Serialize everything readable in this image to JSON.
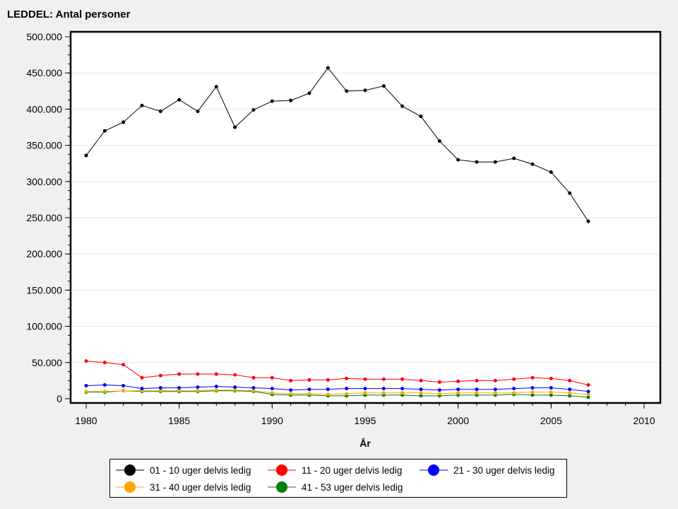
{
  "chart_data": {
    "type": "line",
    "title": "LEDDEL: Antal personer",
    "xlabel": "År",
    "ylabel": "",
    "xlim": [
      1980,
      2010
    ],
    "ylim": [
      0,
      500000
    ],
    "x_ticks": [
      "1980",
      "1985",
      "1990",
      "1995",
      "2000",
      "2005",
      "2010"
    ],
    "y_ticks": [
      "0",
      "50.000",
      "100.000",
      "150.000",
      "200.000",
      "250.000",
      "300.000",
      "350.000",
      "400.000",
      "450.000",
      "500.000"
    ],
    "grid": true,
    "legend_position": "bottom",
    "x": [
      1980,
      1981,
      1982,
      1983,
      1984,
      1985,
      1986,
      1987,
      1988,
      1989,
      1990,
      1991,
      1992,
      1993,
      1994,
      1995,
      1996,
      1997,
      1998,
      1999,
      2000,
      2001,
      2002,
      2003,
      2004,
      2005,
      2006,
      2007
    ],
    "series": [
      {
        "name": "01 - 10 uger delvis ledig",
        "color": "#000000",
        "values": [
          336000,
          370000,
          382000,
          405000,
          397000,
          413000,
          397000,
          431000,
          375000,
          399000,
          411000,
          412000,
          422000,
          457000,
          425000,
          426000,
          432000,
          404000,
          390000,
          356000,
          330000,
          327000,
          327000,
          332000,
          324000,
          313000,
          284000,
          245000
        ]
      },
      {
        "name": "11 - 20 uger delvis ledig",
        "color": "#ff0000",
        "values": [
          52000,
          50000,
          47000,
          29000,
          32000,
          34000,
          34000,
          34000,
          33000,
          29000,
          29000,
          25000,
          26000,
          26000,
          28000,
          27000,
          27000,
          27000,
          25000,
          23000,
          24000,
          25000,
          25000,
          27000,
          29000,
          28000,
          25000,
          19000
        ]
      },
      {
        "name": "21 - 30 uger delvis ledig",
        "color": "#0000ff",
        "values": [
          18000,
          19000,
          18000,
          14000,
          15000,
          15000,
          16000,
          17000,
          16000,
          15000,
          14000,
          12000,
          13000,
          13000,
          14000,
          14000,
          14000,
          14000,
          13000,
          12000,
          13000,
          13000,
          13000,
          14000,
          15000,
          15000,
          13000,
          10000
        ]
      },
      {
        "name": "31 - 40 uger delvis ledig",
        "color": "#ffa500",
        "values": [
          10000,
          10000,
          11000,
          11000,
          11000,
          11000,
          11000,
          12000,
          12000,
          11000,
          8000,
          7000,
          7000,
          6000,
          7000,
          8000,
          8000,
          8000,
          8000,
          7000,
          8000,
          8000,
          8000,
          8000,
          9000,
          9000,
          8000,
          6000
        ]
      },
      {
        "name": "41 - 53 uger delvis ledig",
        "color": "#008000",
        "values": [
          9000,
          9000,
          11000,
          10000,
          10000,
          10000,
          10000,
          11000,
          11000,
          10000,
          6000,
          5000,
          5000,
          4000,
          4000,
          5000,
          5000,
          5000,
          4000,
          4000,
          5000,
          5000,
          5000,
          6000,
          5000,
          5000,
          4000,
          2000
        ]
      }
    ]
  }
}
